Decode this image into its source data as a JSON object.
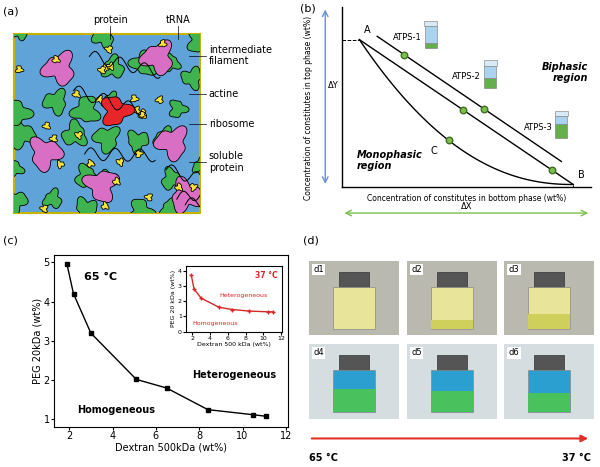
{
  "panel_labels": [
    "(a)",
    "(b)",
    "(c)",
    "(d)"
  ],
  "panel_a": {
    "top_labels": [
      "protein",
      "tRNA"
    ],
    "side_labels": [
      "intermediate filament",
      "actine",
      "ribosome",
      "soluble protein"
    ]
  },
  "panel_b": {
    "y_label": "Concentration of constitutes in top phase (wt%)",
    "x_label": "Concentration of constitutes in bottom phase (wt%)",
    "points": [
      "A",
      "B",
      "C"
    ],
    "tubes": [
      "ATPS-1",
      "ATPS-2",
      "ATPS-3"
    ],
    "regions": [
      "Biphasic region",
      "Monophasic region"
    ],
    "delta_y": "ΔY",
    "delta_x": "ΔX"
  },
  "chart_data": [
    {
      "type": "line",
      "x_label": "Dextran 500kDa (wt%)",
      "y_label": "PEG 20kDa (wt%)",
      "annotations": [
        "65 °C",
        "Homogeneous",
        "Heterogeneous"
      ],
      "x": [
        1.9,
        2.2,
        3.0,
        5.1,
        6.5,
        8.4,
        10.5,
        11.1
      ],
      "series": [
        {
          "color": "#000000",
          "marker": "square",
          "line_style": "solid",
          "values": [
            4.95,
            4.2,
            3.2,
            2.02,
            1.8,
            1.25,
            1.12,
            1.08
          ]
        }
      ],
      "xlim": [
        1.3,
        12.1
      ],
      "ylim": [
        0.8,
        5.2
      ],
      "xticks": [
        2,
        4,
        6,
        8,
        10,
        12
      ],
      "yticks": [
        1,
        2,
        3,
        4,
        5
      ]
    },
    {
      "type": "line",
      "x_label": "Dextran 500 kDa (wt%)",
      "y_label": "PEG 20 kDa (wt%)",
      "annotations": [
        "37 °C",
        "Heterogeneous",
        "Homogeneous"
      ],
      "x": [
        1.9,
        2.2,
        3.0,
        5.0,
        6.5,
        8.4,
        10.5,
        11.1
      ],
      "series": [
        {
          "color": "#d62728",
          "marker": "plus",
          "line_style": "solid",
          "values": [
            3.7,
            2.8,
            2.2,
            1.6,
            1.45,
            1.35,
            1.3,
            1.3
          ]
        }
      ],
      "xlim": [
        1.3,
        12.1
      ],
      "ylim": [
        0,
        4.3
      ],
      "xticks": [
        2,
        4,
        6,
        8,
        10,
        12
      ],
      "yticks": [
        0,
        1,
        2,
        3,
        4
      ]
    }
  ],
  "panel_d": {
    "photos": [
      "d1",
      "d2",
      "d3",
      "d4",
      "d5",
      "d6"
    ],
    "start": "65 °C",
    "end": "37 °C"
  }
}
